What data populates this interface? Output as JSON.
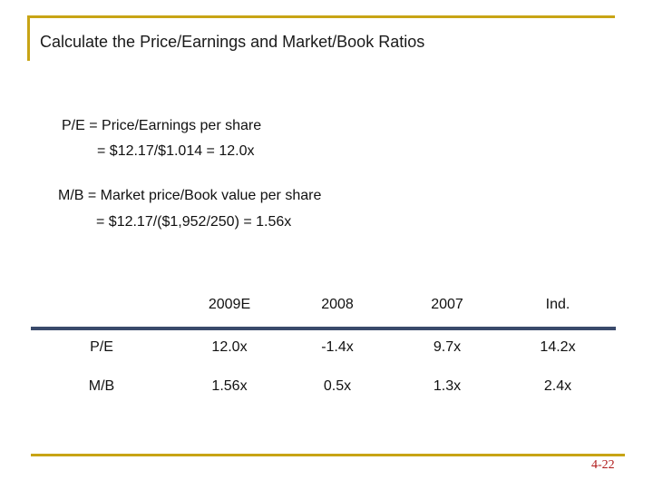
{
  "slide": {
    "title": "Calculate the Price/Earnings and Market/Book Ratios",
    "page_number": "4-22"
  },
  "formulas": {
    "pe_line1": "P/E  = Price/Earnings per share",
    "pe_line2": "= $12.17/$1.014 = 12.0x",
    "mb_line1": "M/B  = Market price/Book value per share",
    "mb_line2": "= $12.17/($1,952/250) = 1.56x"
  },
  "table": {
    "headers": [
      "",
      "2009E",
      "2008",
      "2007",
      "Ind."
    ],
    "rows": [
      [
        "P/E",
        "12.0x",
        "-1.4x",
        "9.7x",
        "14.2x"
      ],
      [
        "M/B",
        "1.56x",
        "0.5x",
        "1.3x",
        "2.4x"
      ]
    ]
  },
  "colors": {
    "accent_gold": "#c8a415",
    "divider_navy": "#3a4a6b",
    "page_number_red": "#b01a1a"
  }
}
